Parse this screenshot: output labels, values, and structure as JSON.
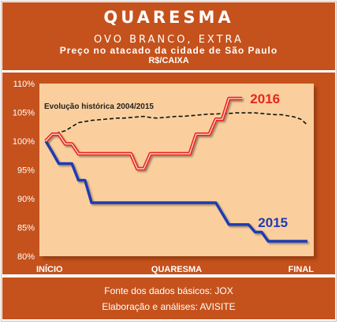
{
  "header": {
    "title": "QUARESMA",
    "subtitle": "OVO BRANCO, EXTRA",
    "subtitle2": "Preço no atacado da cidade de São Paulo",
    "unit": "R$/CAIXA"
  },
  "footer": {
    "source": "Fonte dos dados básicos: JOX",
    "author": "Elaboração e análises: AVISITE"
  },
  "colors": {
    "background": "#c5521c",
    "plot": "#fbcf9d",
    "series_2016": "#e8251e",
    "series_2015": "#1f3ab5",
    "historical": "#111111"
  },
  "chart_data": {
    "type": "line",
    "x_categories": [
      "INÍCIO",
      "QUARESMA",
      "FINAL"
    ],
    "x": [
      0,
      1,
      2,
      3,
      4,
      5,
      6,
      7,
      8,
      9,
      10,
      11,
      12,
      13,
      14,
      15,
      16,
      17,
      18,
      19,
      20,
      21,
      22,
      23,
      24,
      25,
      26,
      27,
      28,
      29,
      30,
      31,
      32,
      33,
      34,
      35,
      36,
      37,
      38,
      39,
      40
    ],
    "xlim": [
      0,
      40
    ],
    "ylim": [
      80,
      110
    ],
    "yticks": [
      "80%",
      "85%",
      "90%",
      "95%",
      "100%",
      "105%",
      "110%"
    ],
    "ytick_values": [
      80,
      85,
      90,
      95,
      100,
      105,
      110
    ],
    "grid": false,
    "annotation": "Evolução histórica 2004/2015",
    "series": [
      {
        "name": "2016",
        "values": [
          100,
          101.2,
          101.2,
          99.5,
          99.5,
          97.8,
          97.8,
          97.8,
          97.8,
          97.8,
          97.8,
          97.8,
          97.8,
          97.8,
          95.2,
          95.2,
          97.8,
          97.8,
          97.8,
          97.8,
          97.8,
          97.8,
          97.8,
          101.2,
          101.2,
          101.2,
          103.8,
          103.8,
          107.4,
          107.4,
          107.4,
          null,
          null,
          null,
          null,
          null,
          null,
          null,
          null,
          null,
          null
        ]
      },
      {
        "name": "2015",
        "values": [
          100,
          98.1,
          96.1,
          96.1,
          96.1,
          93.2,
          93.2,
          89.3,
          89.3,
          89.3,
          89.3,
          89.3,
          89.3,
          89.3,
          89.3,
          89.3,
          89.3,
          89.3,
          89.3,
          89.3,
          89.3,
          89.3,
          89.3,
          89.3,
          89.3,
          89.3,
          89.3,
          87.4,
          85.5,
          85.5,
          85.5,
          85.5,
          84.2,
          84.2,
          82.6,
          82.6,
          82.6,
          82.6,
          82.6,
          82.6,
          82.6
        ]
      },
      {
        "name": "Evolução histórica 2004/2015",
        "values": [
          100,
          101,
          101.5,
          101.8,
          102.5,
          103.2,
          103.4,
          103.6,
          103.7,
          103.8,
          103.9,
          104,
          104,
          104.1,
          104.2,
          104.3,
          104.1,
          104,
          104.1,
          104.2,
          104.3,
          104.3,
          104.4,
          104.5,
          104.6,
          104.7,
          104.7,
          104.8,
          104.8,
          104.9,
          104.9,
          104.9,
          104.9,
          104.8,
          104.7,
          104.6,
          104.6,
          104.4,
          104.2,
          103.8,
          102.8
        ]
      }
    ]
  }
}
